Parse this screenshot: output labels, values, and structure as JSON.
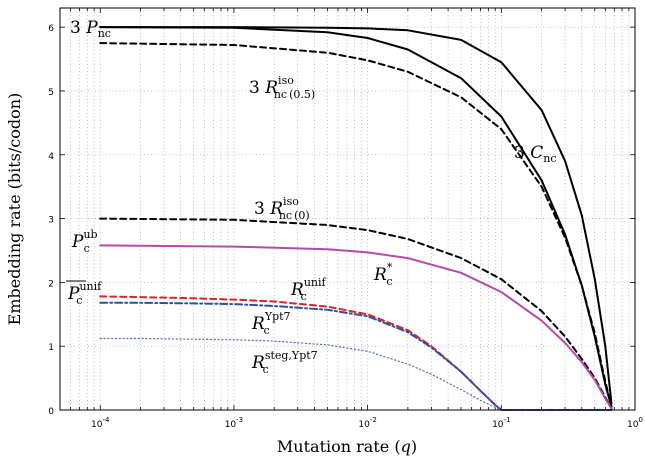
{
  "chart_data": {
    "type": "line",
    "xscale": "log",
    "xlim": [
      5e-05,
      1
    ],
    "ylim": [
      0,
      6.3
    ],
    "xlabel": "Mutation rate (q)",
    "ylabel": "Embedding rate (bits/codon)",
    "grid": true,
    "yticks": [
      0,
      1,
      2,
      3,
      4,
      5,
      6
    ],
    "xtick_labels": [
      {
        "base": "10",
        "exp": "-4"
      },
      {
        "base": "10",
        "exp": "-3"
      },
      {
        "base": "10",
        "exp": "-2"
      },
      {
        "base": "10",
        "exp": "-1"
      },
      {
        "base": "10",
        "exp": "0"
      }
    ],
    "series": [
      {
        "id": "3Pnc",
        "color": "#000000",
        "style": "solid",
        "x": [
          0.0001,
          0.001,
          0.005,
          0.01,
          0.02,
          0.05,
          0.1,
          0.2,
          0.3,
          0.4,
          0.5,
          0.6,
          0.667
        ],
        "y": [
          6.0,
          6.0,
          5.99,
          5.98,
          5.95,
          5.8,
          5.45,
          4.7,
          3.9,
          3.05,
          2.05,
          1.0,
          0.1
        ]
      },
      {
        "id": "3Cnc",
        "color": "#000000",
        "style": "solid",
        "x": [
          0.0001,
          0.001,
          0.005,
          0.01,
          0.02,
          0.05,
          0.1,
          0.2,
          0.3,
          0.4,
          0.5,
          0.6,
          0.667
        ],
        "y": [
          6.0,
          5.99,
          5.92,
          5.83,
          5.65,
          5.2,
          4.6,
          3.6,
          2.75,
          1.95,
          1.15,
          0.4,
          0.05
        ]
      },
      {
        "id": "3Riso05",
        "color": "#000000",
        "style": "dashed",
        "x": [
          0.0001,
          0.001,
          0.005,
          0.01,
          0.02,
          0.05,
          0.1,
          0.2,
          0.3,
          0.4,
          0.5,
          0.6,
          0.667
        ],
        "y": [
          5.75,
          5.72,
          5.6,
          5.48,
          5.3,
          4.9,
          4.4,
          3.5,
          2.7,
          1.95,
          1.2,
          0.45,
          0.05
        ]
      },
      {
        "id": "3Riso0",
        "color": "#000000",
        "style": "dashed",
        "x": [
          0.0001,
          0.001,
          0.005,
          0.01,
          0.02,
          0.05,
          0.1,
          0.2,
          0.3,
          0.4,
          0.5,
          0.6,
          0.667
        ],
        "y": [
          3.0,
          2.98,
          2.9,
          2.82,
          2.68,
          2.38,
          2.05,
          1.55,
          1.15,
          0.8,
          0.5,
          0.2,
          0.02
        ]
      },
      {
        "id": "Rstar",
        "color": "#b64aa6",
        "style": "solid",
        "x": [
          0.0001,
          0.001,
          0.005,
          0.01,
          0.02,
          0.05,
          0.1,
          0.2,
          0.3,
          0.4,
          0.5,
          0.6,
          0.667
        ],
        "y": [
          2.58,
          2.56,
          2.52,
          2.47,
          2.38,
          2.15,
          1.85,
          1.4,
          1.05,
          0.75,
          0.47,
          0.18,
          0.02
        ]
      },
      {
        "id": "Runif",
        "color": "#e0202a",
        "style": "dashed",
        "x": [
          0.0001,
          0.0002,
          0.0005,
          0.001,
          0.002,
          0.005,
          0.01,
          0.02,
          0.03,
          0.05,
          0.07,
          0.09,
          0.1,
          0.2,
          0.4,
          0.667
        ],
        "y": [
          1.78,
          1.77,
          1.75,
          1.73,
          1.7,
          1.62,
          1.5,
          1.25,
          1.0,
          0.6,
          0.3,
          0.08,
          0.0,
          0.0,
          0.0,
          0.0
        ]
      },
      {
        "id": "RYpt7",
        "color": "#2f4f9e",
        "style": "dashdot",
        "x": [
          0.0001,
          0.0002,
          0.0005,
          0.001,
          0.002,
          0.005,
          0.01,
          0.02,
          0.03,
          0.05,
          0.07,
          0.09,
          0.1,
          0.2,
          0.4,
          0.667
        ],
        "y": [
          1.68,
          1.68,
          1.67,
          1.66,
          1.63,
          1.57,
          1.47,
          1.22,
          0.98,
          0.6,
          0.3,
          0.08,
          0.0,
          0.0,
          0.0,
          0.0
        ]
      },
      {
        "id": "RstegYpt7",
        "color": "#5a6fb4",
        "style": "dotted",
        "x": [
          0.0001,
          0.0002,
          0.0005,
          0.001,
          0.002,
          0.005,
          0.01,
          0.02,
          0.03,
          0.05,
          0.07,
          0.09,
          0.1,
          0.2,
          0.4,
          0.667
        ],
        "y": [
          1.12,
          1.12,
          1.11,
          1.1,
          1.08,
          1.02,
          0.92,
          0.72,
          0.56,
          0.32,
          0.15,
          0.04,
          0.0,
          0.0,
          0.0,
          0.0
        ]
      }
    ],
    "annotations": {
      "p_nc": {
        "coef": "3",
        "main": "P",
        "sub": "nc"
      },
      "r_iso05": {
        "coef": "3",
        "main": "R",
        "sup": "iso",
        "sub": "nc",
        "suffix": "(0.5)"
      },
      "c_nc": {
        "coef": "3",
        "main": "C",
        "sub": "nc"
      },
      "r_iso0": {
        "coef": "3",
        "main": "R",
        "sup": "iso",
        "sub": "nc",
        "suffix": "(0)"
      },
      "p_ub": {
        "main": "P",
        "sup": "ub",
        "sub": "c"
      },
      "r_star": {
        "main": "R",
        "sup": "*",
        "sub": "c"
      },
      "p_unif": {
        "main": "P",
        "sup": "unif",
        "sub": "c"
      },
      "r_unif": {
        "main": "R",
        "sup": "unif",
        "sub": "c"
      },
      "r_ypt7": {
        "main": "R",
        "sup": "Ypt7",
        "sub": "c"
      },
      "r_steg": {
        "main": "R",
        "sup": "steg,Ypt7",
        "sub": "c"
      }
    }
  }
}
